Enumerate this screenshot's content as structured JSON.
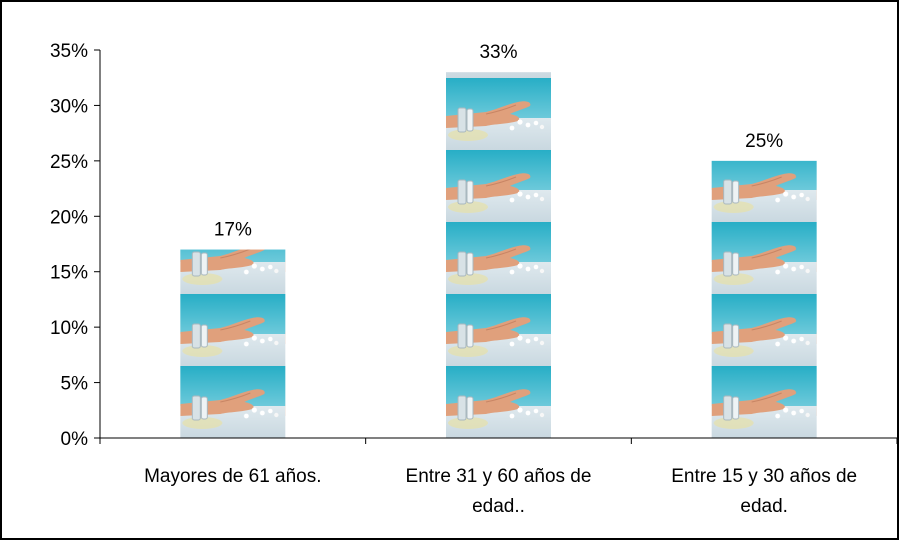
{
  "chart_data": {
    "type": "bar",
    "title": "",
    "xlabel": "",
    "ylabel": "",
    "categories": [
      [
        "Mayores de 61 años."
      ],
      [
        "Entre 31 y 60 años de",
        "edad.."
      ],
      [
        "Entre 15 y 30 años de",
        "edad."
      ]
    ],
    "values": [
      17,
      33,
      25
    ],
    "data_labels": [
      "17%",
      "33%",
      "25%"
    ],
    "ylim": [
      0,
      35
    ],
    "y_ticks": [
      0,
      5,
      10,
      15,
      20,
      25,
      30,
      35
    ],
    "y_tick_labels": [
      "0%",
      "5%",
      "10%",
      "15%",
      "20%",
      "25%",
      "30%",
      "35%"
    ],
    "grid": false,
    "legend": "none",
    "bar_fill": "stacked photo tiles: hand with spilled pills on teal background",
    "colors": {
      "tile_sky": "#2fb3c9",
      "tile_sky_light": "#7fd0de",
      "tile_table": "#e4ecf0",
      "tile_hand": "#e2a07a",
      "tile_pill": "#ffffff",
      "axis": "#000000"
    }
  }
}
